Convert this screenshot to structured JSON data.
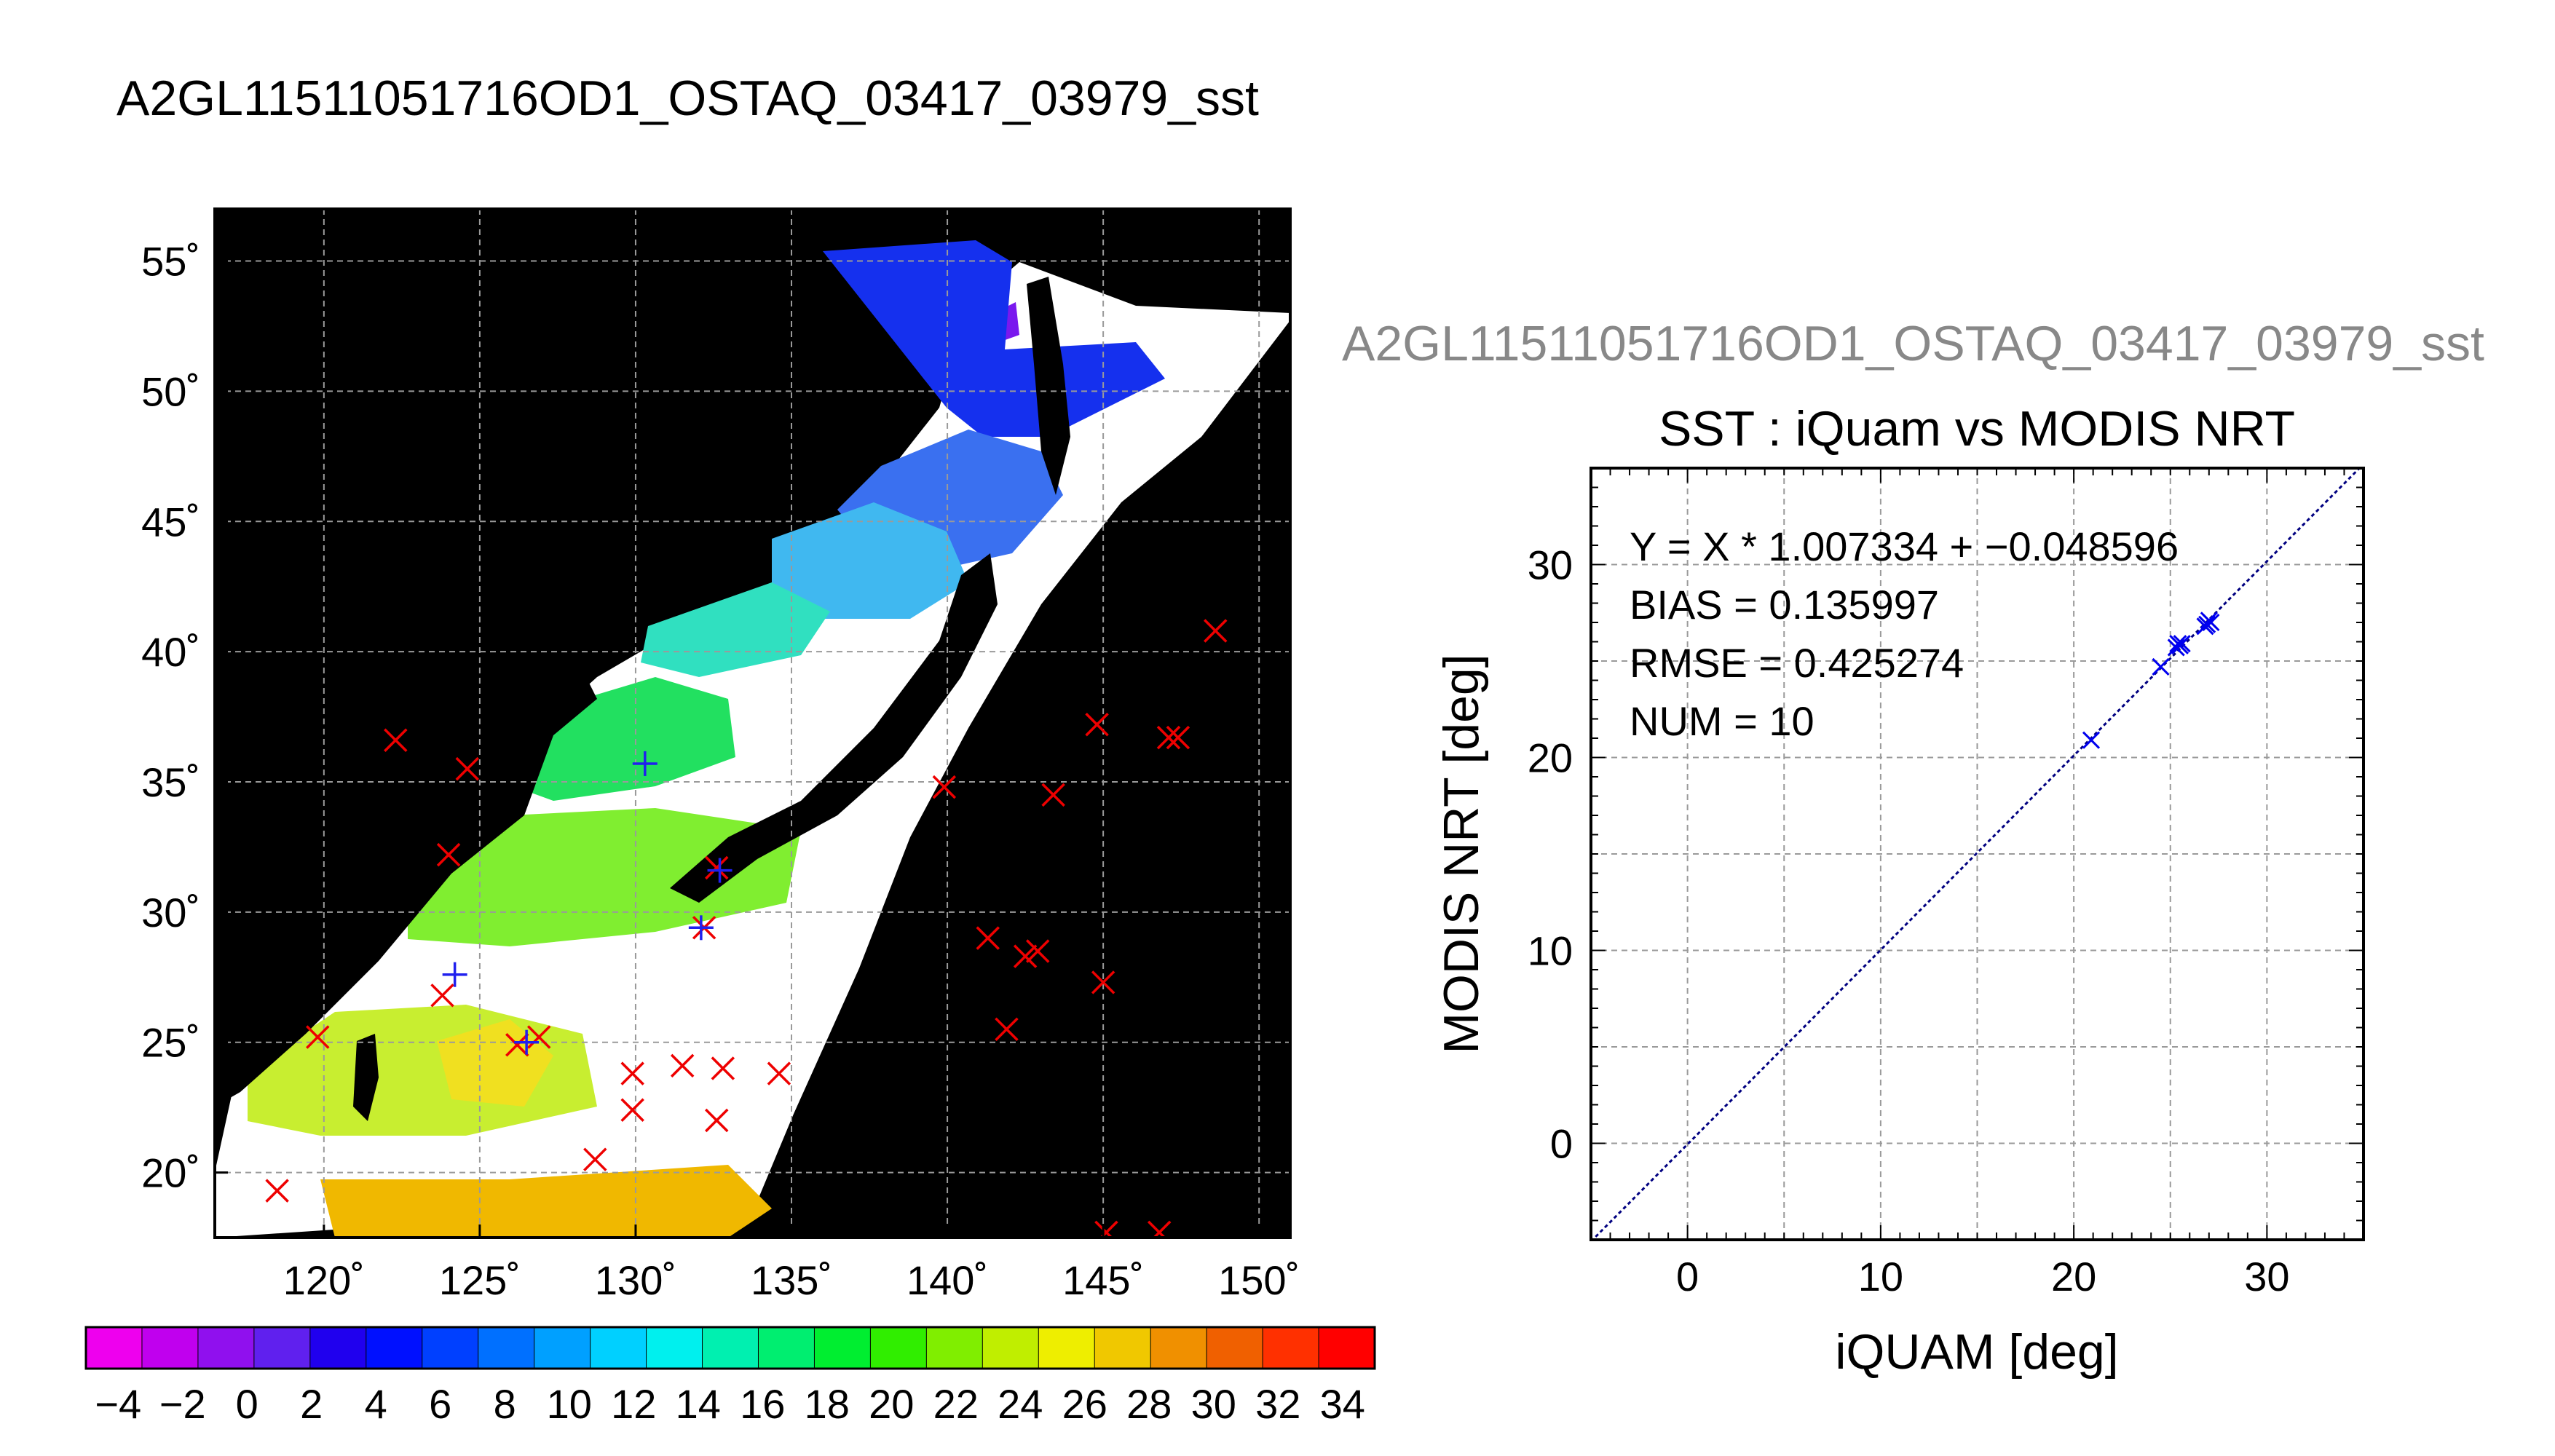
{
  "figure_title": "A2GL11511051716OD1_OSTAQ_03417_03979_sst",
  "scatter_overtitle": "A2GL11511051716OD1_OSTAQ_03417_03979_sst",
  "chart_data": [
    {
      "type": "heatmap",
      "title": "A2GL11511051716OD1_OSTAQ_03417_03979_sst",
      "xlabel": "",
      "ylabel": "",
      "xlim": [
        116.5,
        151.0
      ],
      "ylim": [
        17.5,
        57.0
      ],
      "x_ticks": [
        120,
        125,
        130,
        135,
        140,
        145,
        150
      ],
      "x_tick_labels": [
        "120˚",
        "125˚",
        "130˚",
        "135˚",
        "140˚",
        "145˚",
        "150˚"
      ],
      "y_ticks": [
        20,
        25,
        30,
        35,
        40,
        45,
        50,
        55
      ],
      "y_tick_labels": [
        "20˚",
        "25˚",
        "30˚",
        "35˚",
        "40˚",
        "45˚",
        "50˚",
        "55˚"
      ],
      "grid": true,
      "colorbar": {
        "range": [
          -5,
          35
        ],
        "tick_labels": [
          "−4",
          "−2",
          "0",
          "2",
          "4",
          "6",
          "8",
          "10",
          "12",
          "14",
          "16",
          "18",
          "20",
          "22",
          "24",
          "26",
          "28",
          "30",
          "32",
          "34"
        ],
        "tick_values": [
          -4,
          -2,
          0,
          2,
          4,
          6,
          8,
          10,
          12,
          14,
          16,
          18,
          20,
          22,
          24,
          26,
          28,
          30,
          32,
          34
        ],
        "colors": [
          "#ee00ee",
          "#c000ee",
          "#9010ee",
          "#6020ee",
          "#2000ee",
          "#0010ff",
          "#0040ff",
          "#0070ff",
          "#00a0ff",
          "#00d0ff",
          "#00f0ee",
          "#00f0b0",
          "#00ee70",
          "#00ee30",
          "#30ee00",
          "#80ee00",
          "#c0ee00",
          "#eeee00",
          "#f0c800",
          "#f09000",
          "#f06000",
          "#ff3000",
          "#ff0000"
        ]
      },
      "markers_red": [
        [
          118.5,
          19.3
        ],
        [
          119.8,
          25.2
        ],
        [
          122.3,
          36.6
        ],
        [
          123.8,
          26.8
        ],
        [
          124.0,
          32.2
        ],
        [
          124.6,
          35.5
        ],
        [
          126.2,
          24.9
        ],
        [
          126.9,
          25.2
        ],
        [
          128.7,
          20.5
        ],
        [
          129.9,
          23.8
        ],
        [
          129.9,
          22.4
        ],
        [
          131.5,
          24.1
        ],
        [
          132.2,
          29.4
        ],
        [
          132.6,
          31.7
        ],
        [
          132.6,
          22.0
        ],
        [
          132.8,
          24.0
        ],
        [
          134.6,
          23.8
        ],
        [
          139.9,
          34.8
        ],
        [
          141.3,
          29.0
        ],
        [
          141.9,
          25.5
        ],
        [
          142.5,
          28.3
        ],
        [
          142.9,
          28.5
        ],
        [
          143.4,
          34.5
        ],
        [
          144.8,
          37.2
        ],
        [
          145.0,
          27.3
        ],
        [
          145.1,
          17.7
        ],
        [
          146.8,
          17.7
        ],
        [
          147.1,
          36.7
        ],
        [
          147.4,
          36.7
        ],
        [
          148.6,
          40.8
        ]
      ],
      "markers_blue": [
        [
          124.2,
          27.6
        ],
        [
          126.5,
          25.0
        ],
        [
          130.3,
          35.7
        ],
        [
          132.1,
          29.4
        ],
        [
          132.7,
          31.6
        ]
      ]
    },
    {
      "type": "scatter",
      "title": "SST : iQuam vs MODIS NRT",
      "xlabel": "iQUAM [deg]",
      "ylabel": "MODIS NRT [deg]",
      "xlim": [
        -5,
        35
      ],
      "ylim": [
        -5,
        35
      ],
      "x_ticks": [
        0,
        10,
        20,
        30
      ],
      "y_ticks": [
        0,
        10,
        20,
        30
      ],
      "grid": true,
      "annotations": [
        "Y = X * 1.007334 + −0.048596",
        "BIAS = 0.135997",
        "RMSE = 0.425274",
        "NUM = 10"
      ],
      "fit": {
        "slope": 1.007334,
        "intercept": -0.048596
      },
      "series": [
        {
          "values": [
            [
              20.9,
              20.9
            ],
            [
              24.5,
              24.7
            ],
            [
              25.3,
              25.7
            ],
            [
              25.4,
              25.9
            ],
            [
              25.5,
              25.8
            ],
            [
              26.9,
              26.9
            ],
            [
              27.0,
              27.1
            ],
            [
              27.1,
              27.0
            ],
            [
              26.8,
              26.8
            ],
            [
              25.6,
              25.9
            ]
          ]
        }
      ],
      "marker_color": "#0000ee",
      "line_color": "#000080"
    }
  ]
}
